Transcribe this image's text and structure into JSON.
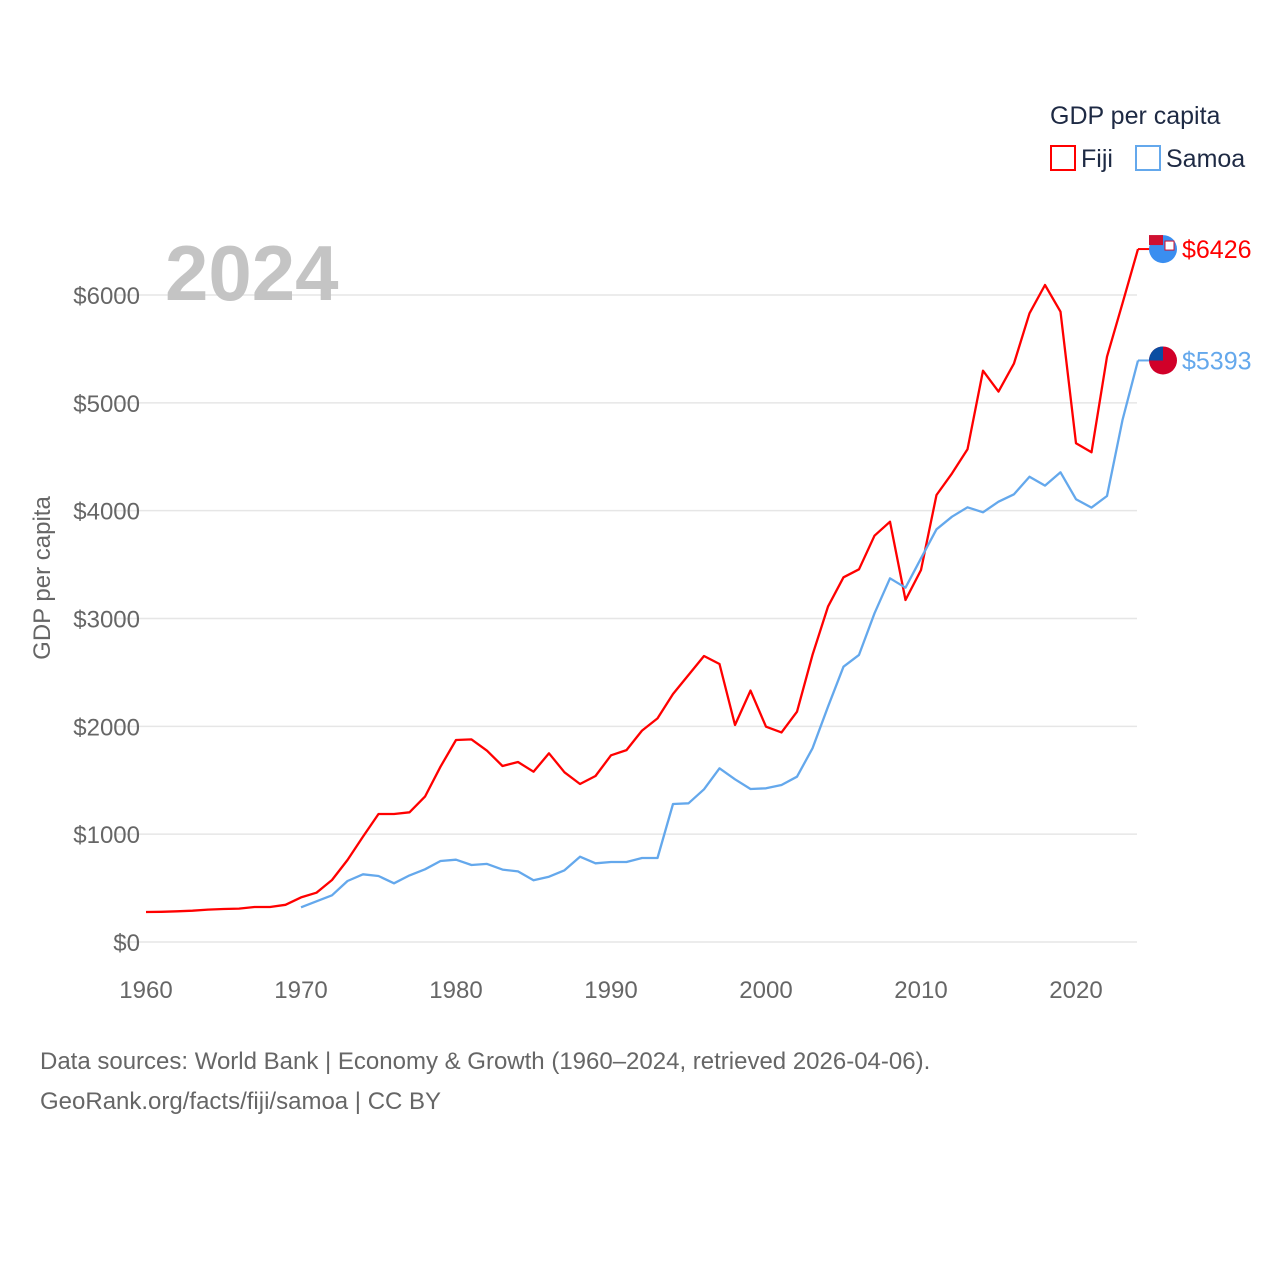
{
  "chart_data": {
    "type": "line",
    "title": "GDP per capita",
    "year_label": "2024",
    "xlabel": "",
    "ylabel": "GDP per capita",
    "xlim": [
      1960,
      2024
    ],
    "ylim": [
      0,
      6000
    ],
    "x_ticks": [
      1960,
      1970,
      1980,
      1990,
      2000,
      2010,
      2020
    ],
    "y_ticks": [
      0,
      1000,
      2000,
      3000,
      4000,
      5000,
      6000
    ],
    "y_tick_labels": [
      "$0",
      "$1000",
      "$2000",
      "$3000",
      "$4000",
      "$5000",
      "$6000"
    ],
    "grid": true,
    "legend_position": "top-right",
    "legend_title": "GDP per capita",
    "series": [
      {
        "name": "Fiji",
        "color": "#ff0000",
        "end_label": "$6426",
        "flag": "fiji-flag",
        "start_year": 1960,
        "values": [
          278,
          280,
          285,
          290,
          300,
          306,
          310,
          325,
          325,
          345,
          414,
          457,
          575,
          760,
          977,
          1187,
          1187,
          1203,
          1348,
          1626,
          1873,
          1879,
          1774,
          1632,
          1669,
          1579,
          1750,
          1574,
          1465,
          1539,
          1731,
          1780,
          1960,
          2074,
          2300,
          2476,
          2652,
          2578,
          2012,
          2331,
          1997,
          1944,
          2136,
          2662,
          3110,
          3382,
          3456,
          3768,
          3898,
          3172,
          3450,
          4145,
          4346,
          4569,
          5298,
          5104,
          5366,
          5830,
          6093,
          5845,
          4625,
          4541,
          5428,
          5923,
          6426
        ]
      },
      {
        "name": "Samoa",
        "color": "#64a8ec",
        "end_label": "$5393",
        "flag": "samoa-flag",
        "start_year": 1970,
        "values": [
          322,
          377,
          433,
          566,
          628,
          612,
          544,
          618,
          674,
          751,
          763,
          714,
          724,
          671,
          655,
          572,
          606,
          665,
          791,
          730,
          742,
          742,
          779,
          779,
          1280,
          1286,
          1416,
          1611,
          1509,
          1419,
          1425,
          1456,
          1533,
          1796,
          2182,
          2553,
          2662,
          3048,
          3373,
          3286,
          3558,
          3827,
          3944,
          4031,
          3985,
          4083,
          4152,
          4315,
          4232,
          4356,
          4106,
          4028,
          4136,
          4841,
          5393
        ]
      }
    ]
  },
  "footer": {
    "line1": "Data sources: World Bank | Economy & Growth (1960–2024, retrieved 2026-04-06).",
    "line2": "GeoRank.org/facts/fiji/samoa | CC BY"
  }
}
